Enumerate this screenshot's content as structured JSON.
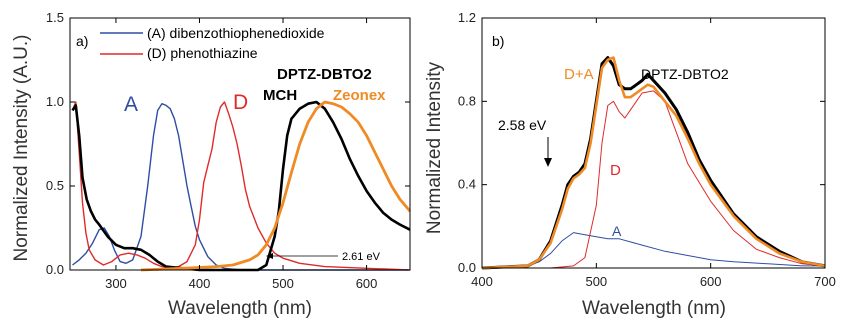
{
  "chart_data": [
    {
      "type": "line",
      "panel_label": "a)",
      "xlabel": "Wavelength (nm)",
      "ylabel": "Normalized Intensity (A.U.)",
      "xlim": [
        245,
        652
      ],
      "ylim": [
        0,
        1.5
      ],
      "xticks": [
        300,
        400,
        500,
        600
      ],
      "yticks": [
        0.0,
        0.5,
        1.0,
        1.5
      ],
      "ytick_labels": [
        "0.0",
        "0.5",
        "1.0",
        "1.5"
      ],
      "xtick_labels": [
        "300",
        "400",
        "500",
        "600"
      ],
      "legend": [
        {
          "label": "(A) dibenzothiophenedioxide",
          "color": "#2f4ea3"
        },
        {
          "label": "(D) phenothiazine",
          "color": "#e02a2a"
        }
      ],
      "annotations": [
        {
          "text": "A",
          "color": "#2f4ea3"
        },
        {
          "text": "D",
          "color": "#e02a2a"
        },
        {
          "text": "DPTZ-DBTO2",
          "color": "#000000"
        },
        {
          "text": "MCH",
          "color": "#000000"
        },
        {
          "text": "Zeonex",
          "color": "#f08a24"
        },
        {
          "text": "2.61 eV",
          "color": "#000000"
        }
      ],
      "series": [
        {
          "color": "#2f4ea3",
          "x": [
            248,
            256,
            264,
            272,
            280,
            286,
            292,
            298,
            305,
            312,
            320,
            330,
            338,
            345,
            350,
            355,
            360,
            365,
            370,
            375,
            380,
            385,
            390,
            395,
            400,
            410,
            420,
            430,
            440,
            450,
            480,
            550,
            650
          ],
          "y": [
            0.03,
            0.06,
            0.1,
            0.16,
            0.24,
            0.25,
            0.2,
            0.12,
            0.05,
            0.04,
            0.06,
            0.2,
            0.5,
            0.8,
            0.95,
            0.99,
            0.98,
            0.96,
            0.9,
            0.8,
            0.65,
            0.5,
            0.38,
            0.26,
            0.18,
            0.08,
            0.03,
            0.01,
            0.005,
            0,
            0,
            0,
            0
          ]
        },
        {
          "color": "#e02a2a",
          "x": [
            248,
            252,
            256,
            260,
            264,
            268,
            275,
            285,
            295,
            305,
            315,
            325,
            335,
            345,
            355,
            365,
            375,
            385,
            395,
            400,
            405,
            410,
            415,
            420,
            425,
            430,
            435,
            440,
            445,
            450,
            455,
            460,
            470,
            480,
            490,
            500,
            520,
            550,
            600,
            652
          ],
          "y": [
            0.95,
            1.0,
            0.7,
            0.4,
            0.22,
            0.12,
            0.06,
            0.03,
            0.05,
            0.09,
            0.1,
            0.09,
            0.07,
            0.04,
            0.02,
            0.01,
            0.02,
            0.05,
            0.15,
            0.3,
            0.52,
            0.62,
            0.72,
            0.88,
            0.97,
            1.0,
            0.93,
            0.85,
            0.75,
            0.62,
            0.48,
            0.38,
            0.25,
            0.16,
            0.1,
            0.07,
            0.04,
            0.02,
            0.01,
            0
          ]
        },
        {
          "color": "#000000",
          "x": [
            248,
            252,
            256,
            260,
            265,
            270,
            275,
            280,
            290,
            300,
            310,
            320,
            330,
            340,
            350,
            360,
            380,
            400,
            440,
            470,
            480,
            490,
            495,
            500,
            505,
            510,
            520,
            530,
            540,
            550,
            560,
            570,
            580,
            590,
            600,
            610,
            620,
            630,
            640,
            652
          ],
          "y": [
            0.95,
            0.98,
            0.8,
            0.55,
            0.42,
            0.35,
            0.3,
            0.27,
            0.2,
            0.15,
            0.13,
            0.13,
            0.12,
            0.09,
            0.05,
            0.02,
            0.01,
            0,
            0,
            0,
            0.03,
            0.2,
            0.35,
            0.6,
            0.8,
            0.9,
            0.96,
            0.99,
            1.0,
            0.96,
            0.88,
            0.78,
            0.66,
            0.56,
            0.47,
            0.4,
            0.34,
            0.3,
            0.27,
            0.24
          ]
        },
        {
          "color": "#f08a24",
          "x": [
            330,
            380,
            420,
            440,
            460,
            470,
            480,
            490,
            500,
            510,
            520,
            530,
            540,
            550,
            560,
            570,
            580,
            590,
            600,
            610,
            620,
            630,
            640,
            652
          ],
          "y": [
            0,
            0.01,
            0.02,
            0.03,
            0.06,
            0.09,
            0.15,
            0.25,
            0.4,
            0.58,
            0.75,
            0.88,
            0.96,
            1.0,
            0.99,
            0.97,
            0.93,
            0.88,
            0.8,
            0.7,
            0.6,
            0.5,
            0.42,
            0.35
          ]
        }
      ]
    },
    {
      "type": "line",
      "panel_label": "b)",
      "xlabel": "Wavelength (nm)",
      "ylabel": "Normalized Intensity",
      "xlim": [
        400,
        700
      ],
      "ylim": [
        0,
        1.2
      ],
      "xticks": [
        400,
        500,
        600,
        700
      ],
      "yticks": [
        0.0,
        0.4,
        0.8,
        1.2
      ],
      "ytick_labels": [
        "0.0",
        "0.4",
        "0.8",
        "1.2"
      ],
      "xtick_labels": [
        "400",
        "500",
        "600",
        "700"
      ],
      "annotations": [
        {
          "text": "D+A",
          "color": "#f08a24"
        },
        {
          "text": "DPTZ-DBTO2",
          "color": "#000000"
        },
        {
          "text": "2.58 eV",
          "color": "#000000"
        },
        {
          "text": "D",
          "color": "#e02a2a"
        },
        {
          "text": "A",
          "color": "#2f4ea3"
        }
      ],
      "series": [
        {
          "color": "#2f4ea3",
          "x": [
            400,
            420,
            440,
            450,
            460,
            470,
            480,
            490,
            500,
            510,
            520,
            540,
            560,
            580,
            600,
            620,
            650,
            680,
            700
          ],
          "y": [
            0,
            0,
            0.01,
            0.03,
            0.07,
            0.13,
            0.17,
            0.16,
            0.15,
            0.14,
            0.14,
            0.11,
            0.08,
            0.06,
            0.04,
            0.03,
            0.02,
            0.01,
            0.01
          ]
        },
        {
          "color": "#e02a2a",
          "x": [
            400,
            460,
            480,
            490,
            500,
            505,
            510,
            515,
            520,
            525,
            530,
            540,
            550,
            560,
            570,
            580,
            600,
            620,
            640,
            660,
            680,
            700
          ],
          "y": [
            0,
            0,
            0.01,
            0.05,
            0.3,
            0.6,
            0.78,
            0.8,
            0.75,
            0.72,
            0.76,
            0.84,
            0.85,
            0.8,
            0.65,
            0.5,
            0.32,
            0.18,
            0.09,
            0.05,
            0.02,
            0.01
          ]
        },
        {
          "color": "#000000",
          "x": [
            400,
            440,
            450,
            460,
            470,
            475,
            480,
            485,
            490,
            495,
            500,
            505,
            510,
            515,
            520,
            525,
            530,
            535,
            540,
            545,
            550,
            560,
            570,
            580,
            590,
            600,
            620,
            640,
            660,
            680,
            700
          ],
          "y": [
            0,
            0.01,
            0.04,
            0.13,
            0.3,
            0.4,
            0.44,
            0.46,
            0.5,
            0.62,
            0.8,
            0.98,
            1.01,
            0.97,
            0.88,
            0.86,
            0.86,
            0.88,
            0.9,
            0.93,
            0.9,
            0.84,
            0.76,
            0.65,
            0.52,
            0.42,
            0.26,
            0.15,
            0.08,
            0.03,
            0.01
          ]
        },
        {
          "color": "#f08a24",
          "x": [
            400,
            440,
            450,
            460,
            470,
            475,
            480,
            485,
            490,
            495,
            500,
            505,
            510,
            515,
            520,
            525,
            530,
            535,
            540,
            545,
            550,
            560,
            570,
            580,
            590,
            600,
            620,
            640,
            660,
            680,
            700
          ],
          "y": [
            0,
            0.01,
            0.04,
            0.12,
            0.28,
            0.38,
            0.43,
            0.45,
            0.48,
            0.6,
            0.78,
            0.96,
            1.0,
            1.01,
            0.9,
            0.82,
            0.82,
            0.84,
            0.86,
            0.88,
            0.87,
            0.8,
            0.73,
            0.62,
            0.5,
            0.4,
            0.25,
            0.14,
            0.07,
            0.03,
            0.01
          ]
        }
      ]
    }
  ]
}
